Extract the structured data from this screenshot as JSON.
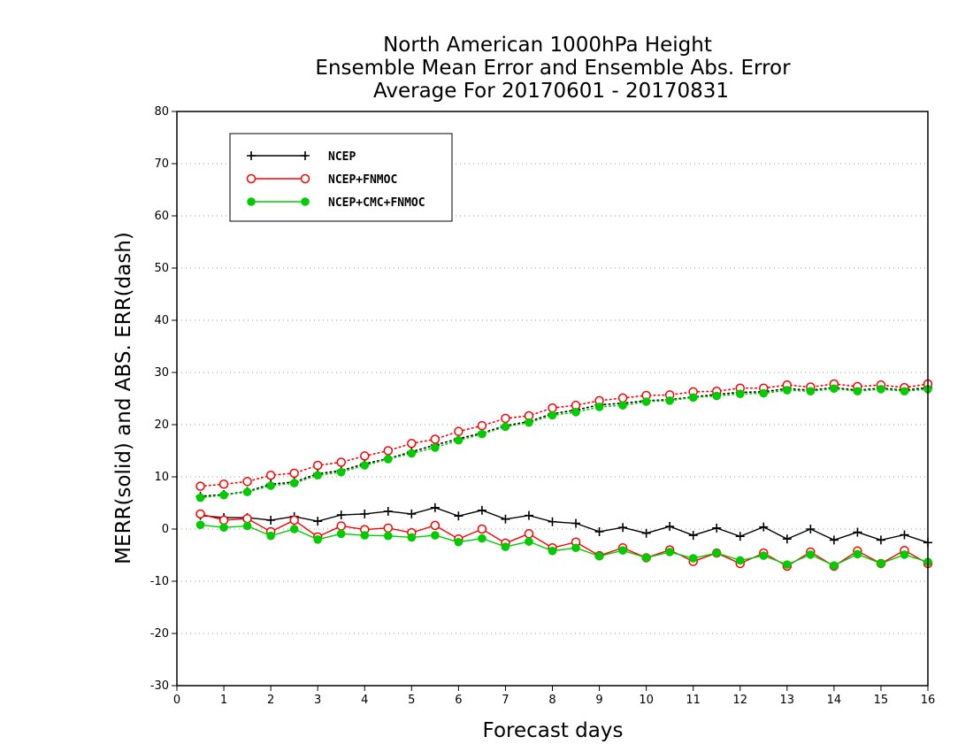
{
  "chart_data": {
    "type": "line",
    "title": [
      "North American 1000hPa Height",
      "Ensemble Mean Error and Ensemble Abs. Error",
      "Average For 20170601 - 20170831"
    ],
    "xlabel": "Forecast days",
    "ylabel": "MERR(solid) and ABS. ERR(dash)",
    "xlim": [
      0,
      16
    ],
    "ylim": [
      -30,
      80
    ],
    "xticks": [
      0,
      1,
      2,
      3,
      4,
      5,
      6,
      7,
      8,
      9,
      10,
      11,
      12,
      13,
      14,
      15,
      16
    ],
    "yticks": [
      -30,
      -20,
      -10,
      0,
      10,
      20,
      30,
      40,
      50,
      60,
      70,
      80
    ],
    "grid": "horizontal dotted",
    "legend_position": "top-left",
    "x": [
      0.5,
      1.0,
      1.5,
      2.0,
      2.5,
      3.0,
      3.5,
      4.0,
      4.5,
      5.0,
      5.5,
      6.0,
      6.5,
      7.0,
      7.5,
      8.0,
      8.5,
      9.0,
      9.5,
      10.0,
      10.5,
      11.0,
      11.5,
      12.0,
      12.5,
      13.0,
      13.5,
      14.0,
      14.5,
      15.0,
      15.5,
      16.0
    ],
    "series": [
      {
        "name": "NCEP",
        "color": "#000000",
        "marker": "plus",
        "merr": [
          2.6,
          2.2,
          2.2,
          1.7,
          2.4,
          1.5,
          2.7,
          2.9,
          3.4,
          2.9,
          4.1,
          2.5,
          3.6,
          1.9,
          2.6,
          1.4,
          1.1,
          -0.5,
          0.3,
          -0.8,
          0.5,
          -1.2,
          0.2,
          -1.4,
          0.4,
          -1.9,
          0.0,
          -2.1,
          -0.6,
          -2.1,
          -1.1,
          -2.6
        ],
        "abs_err": [
          6.3,
          6.6,
          7.2,
          8.6,
          9.0,
          10.6,
          11.2,
          12.5,
          13.5,
          14.8,
          16.1,
          17.3,
          18.4,
          19.8,
          20.6,
          22.1,
          22.8,
          23.8,
          24.1,
          24.6,
          24.8,
          25.3,
          25.8,
          26.2,
          26.3,
          26.9,
          26.6,
          27.1,
          26.6,
          27.0,
          26.6,
          27.1
        ]
      },
      {
        "name": "NCEP+FNMOC",
        "color": "#ff0000",
        "marker": "open-circle",
        "merr": [
          2.9,
          1.7,
          2.0,
          -0.5,
          1.7,
          -1.5,
          0.6,
          -0.1,
          0.2,
          -0.7,
          0.7,
          -1.9,
          0.0,
          -2.7,
          -0.9,
          -3.6,
          -2.5,
          -5.1,
          -3.6,
          -5.5,
          -4.0,
          -6.2,
          -4.6,
          -6.6,
          -4.6,
          -7.1,
          -4.4,
          -7.1,
          -4.2,
          -6.6,
          -4.1,
          -6.6
        ],
        "abs_err": [
          8.2,
          8.6,
          9.1,
          10.3,
          10.7,
          12.2,
          12.8,
          14.0,
          15.0,
          16.4,
          17.2,
          18.7,
          19.8,
          21.2,
          21.7,
          23.2,
          23.7,
          24.6,
          25.1,
          25.6,
          25.7,
          26.3,
          26.4,
          27.0,
          27.0,
          27.6,
          27.2,
          27.8,
          27.3,
          27.6,
          27.1,
          27.8
        ]
      },
      {
        "name": "NCEP+CMC+FNMOC",
        "color": "#00cc00",
        "marker": "filled-circle",
        "merr": [
          0.8,
          0.3,
          0.6,
          -1.3,
          0.0,
          -2.0,
          -0.9,
          -1.2,
          -1.3,
          -1.6,
          -1.2,
          -2.5,
          -1.8,
          -3.4,
          -2.4,
          -4.2,
          -3.6,
          -5.2,
          -4.1,
          -5.5,
          -4.4,
          -5.6,
          -4.6,
          -6.0,
          -5.1,
          -6.8,
          -4.9,
          -7.0,
          -4.8,
          -6.6,
          -4.9,
          -6.3
        ],
        "abs_err": [
          6.0,
          6.5,
          7.1,
          8.3,
          8.8,
          10.3,
          10.9,
          12.2,
          13.4,
          14.5,
          15.6,
          17.0,
          18.2,
          19.6,
          20.4,
          21.8,
          22.4,
          23.4,
          23.7,
          24.4,
          24.6,
          25.2,
          25.5,
          25.9,
          26.0,
          26.6,
          26.4,
          26.9,
          26.4,
          26.8,
          26.4,
          26.8
        ]
      }
    ]
  }
}
